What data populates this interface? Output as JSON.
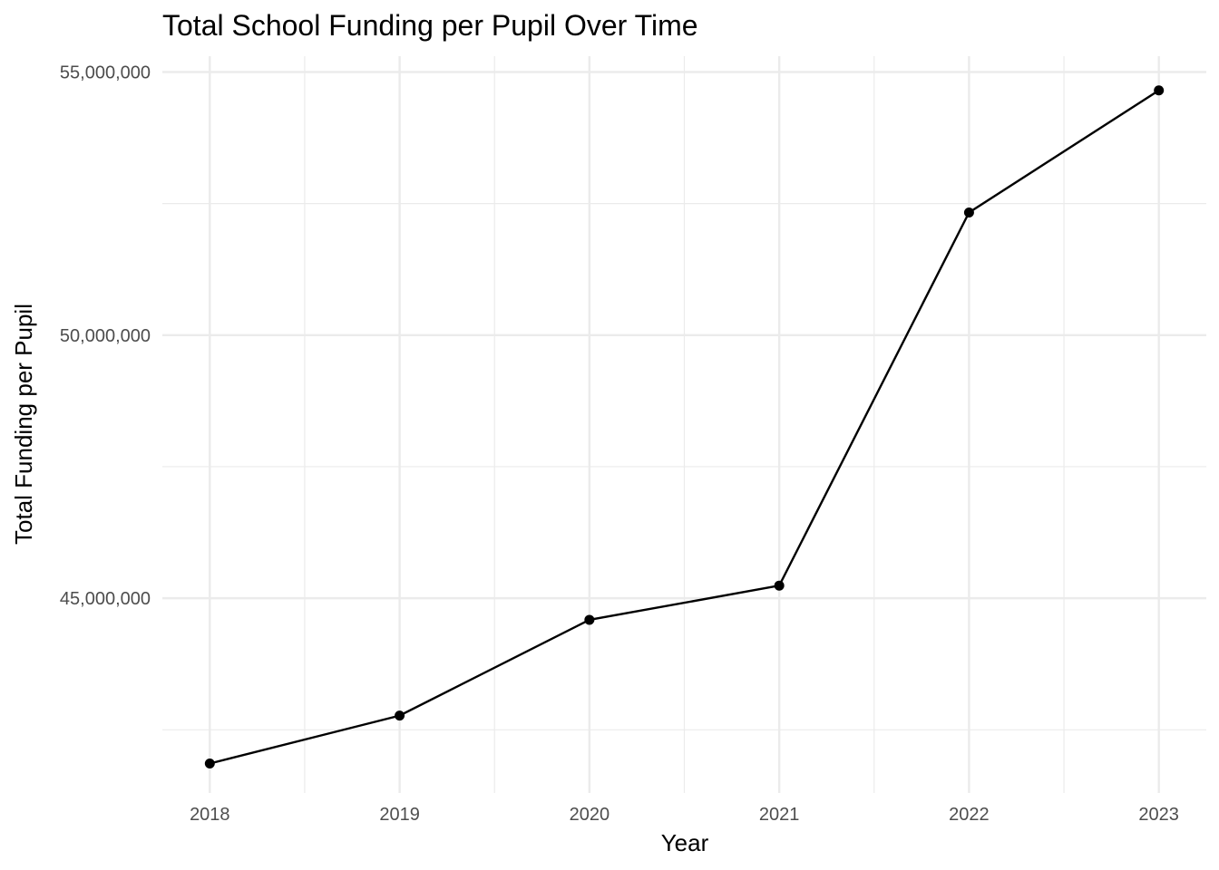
{
  "chart_data": {
    "type": "line",
    "title": "Total School Funding per Pupil Over Time",
    "xlabel": "Year",
    "ylabel": "Total Funding per Pupil",
    "x": [
      2018,
      2019,
      2020,
      2021,
      2022,
      2023
    ],
    "x_tick_labels": [
      "2018",
      "2019",
      "2020",
      "2021",
      "2022",
      "2023"
    ],
    "series": [
      {
        "values": [
          41860000,
          42770000,
          44590000,
          45240000,
          52330000,
          54650000
        ]
      }
    ],
    "y_ticks": [
      45000000,
      50000000,
      55000000
    ],
    "y_tick_labels": [
      "45,000,000",
      "50,000,000",
      "55,000,000"
    ],
    "ylim": [
      41300000,
      55300000
    ],
    "xlim": [
      2017.75,
      2023.25
    ],
    "grid": true,
    "legend": "none",
    "colors": {
      "line": "#000000",
      "grid": "#ebebeb",
      "tick_text": "#4d4d4d"
    }
  }
}
